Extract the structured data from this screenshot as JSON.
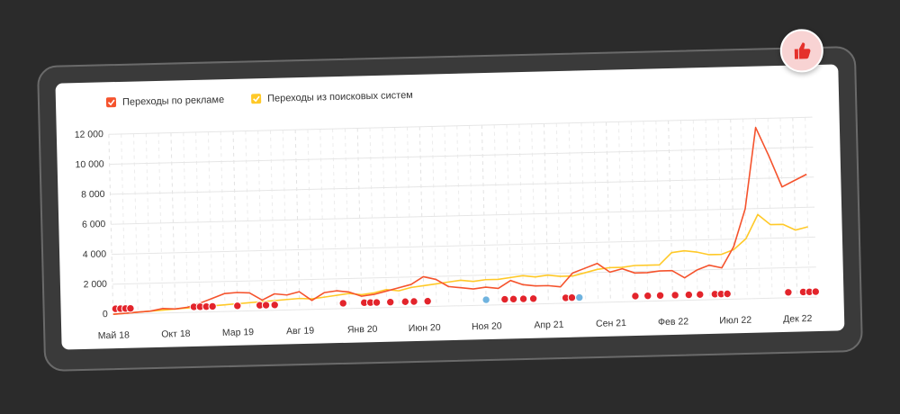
{
  "chart_data": {
    "type": "line",
    "categories": [
      "Май 18",
      null,
      null,
      null,
      null,
      "Окт 18",
      null,
      null,
      null,
      null,
      "Мар 19",
      null,
      null,
      null,
      null,
      "Авг 19",
      null,
      null,
      null,
      null,
      "Янв 20",
      null,
      null,
      null,
      null,
      "Июн 20",
      null,
      null,
      null,
      null,
      "Ноя 20",
      null,
      null,
      null,
      null,
      "Апр 21",
      null,
      null,
      null,
      null,
      "Сен 21",
      null,
      null,
      null,
      null,
      "Фев 22",
      null,
      null,
      null,
      null,
      "Июл 22",
      null,
      null,
      null,
      null,
      "Дек 22",
      null
    ],
    "series": [
      {
        "name": "Переходы по рекламе",
        "color": "#f5532d",
        "values": [
          0,
          50,
          100,
          150,
          300,
          250,
          350,
          600,
          900,
          1200,
          1250,
          1200,
          700,
          1100,
          1000,
          1200,
          600,
          1100,
          1200,
          1100,
          800,
          900,
          1100,
          1300,
          1500,
          2000,
          1800,
          1300,
          1200,
          1100,
          1200,
          1100,
          1600,
          1300,
          1200,
          1200,
          1100,
          2000,
          2300,
          2600,
          2000,
          2200,
          1900,
          1900,
          2000,
          2000,
          1500,
          2000,
          2300,
          2100,
          3500,
          6000,
          11400,
          9500,
          7400,
          7800,
          8200
        ]
      },
      {
        "name": "Переходы из поисковых систем",
        "color": "#ffc928",
        "values": [
          0,
          50,
          100,
          150,
          200,
          250,
          300,
          350,
          400,
          450,
          500,
          550,
          600,
          650,
          700,
          750,
          700,
          800,
          900,
          1000,
          900,
          1000,
          1200,
          1100,
          1300,
          1400,
          1500,
          1600,
          1700,
          1600,
          1700,
          1700,
          1800,
          1900,
          1800,
          1900,
          1800,
          1800,
          2000,
          2200,
          2300,
          2300,
          2400,
          2400,
          2400,
          3200,
          3300,
          3200,
          3000,
          3000,
          3300,
          4000,
          5600,
          4900,
          4900,
          4500,
          4700
        ]
      }
    ],
    "ylim": [
      0,
      12000
    ],
    "yticks": [
      0,
      {
        "value": 2000,
        "label": "2 000"
      },
      {
        "value": 4000,
        "label": "4 000"
      },
      {
        "value": 6000,
        "label": "6 000"
      },
      {
        "value": 8000,
        "label": "8 000"
      },
      {
        "value": 10000,
        "label": "10 000"
      },
      {
        "value": 12000,
        "label": "12 000"
      }
    ],
    "grid": true,
    "legend": "top-left"
  }
}
